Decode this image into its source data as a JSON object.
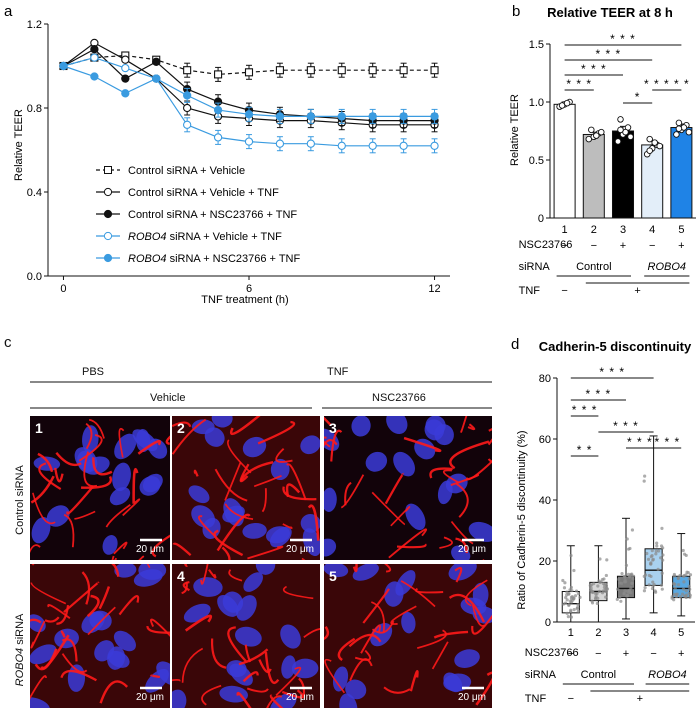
{
  "panel_a": {
    "label": "a",
    "chart_data": {
      "type": "line",
      "xlabel": "TNF treatment (h)",
      "ylabel": "Relative TEER",
      "xlim": [
        -0.5,
        12.5
      ],
      "ylim": [
        0.0,
        1.2
      ],
      "xticks": [
        "0",
        "6",
        "12"
      ],
      "yticks": [
        "0.0",
        "0.4",
        "0.8",
        "1.2"
      ],
      "x": [
        0,
        1,
        2,
        3,
        4,
        5,
        6,
        7,
        8,
        9,
        10,
        11,
        12
      ],
      "series": [
        {
          "name": "Control siRNA + Vehicle",
          "style": "dashed-open-square",
          "color": "#111111",
          "values": [
            1.0,
            1.04,
            1.05,
            1.03,
            0.98,
            0.96,
            0.97,
            0.98,
            0.98,
            0.98,
            0.98,
            0.98,
            0.98
          ]
        },
        {
          "name": "Control siRNA + Vehicle + TNF",
          "style": "open-circle",
          "color": "#111111",
          "values": [
            1.0,
            1.11,
            1.03,
            0.94,
            0.8,
            0.76,
            0.75,
            0.74,
            0.74,
            0.73,
            0.72,
            0.72,
            0.72
          ]
        },
        {
          "name": "Control siRNA + NSC23766 + TNF",
          "style": "filled-circle",
          "color": "#111111",
          "values": [
            1.0,
            1.08,
            0.94,
            1.02,
            0.89,
            0.83,
            0.79,
            0.77,
            0.76,
            0.75,
            0.74,
            0.74,
            0.74
          ]
        },
        {
          "name": "ROBO4 siRNA + Vehicle + TNF",
          "style": "open-circle",
          "color": "#3a9be0",
          "values": [
            1.0,
            1.04,
            0.99,
            0.94,
            0.72,
            0.66,
            0.64,
            0.63,
            0.63,
            0.62,
            0.62,
            0.62,
            0.62
          ]
        },
        {
          "name": "ROBO4 siRNA + NSC23766 + TNF",
          "style": "filled-circle",
          "color": "#3a9be0",
          "values": [
            1.0,
            0.95,
            0.87,
            0.94,
            0.86,
            0.79,
            0.77,
            0.76,
            0.76,
            0.76,
            0.76,
            0.76,
            0.76
          ]
        }
      ],
      "legend": [
        {
          "pre": "",
          "italic": "",
          "text": "Control siRNA + Vehicle"
        },
        {
          "pre": "",
          "italic": "",
          "text": "Control siRNA + Vehicle + TNF"
        },
        {
          "pre": "",
          "italic": "",
          "text": "Control siRNA + NSC23766 + TNF"
        },
        {
          "pre": "",
          "italic": "ROBO4",
          "text": " siRNA + Vehicle + TNF"
        },
        {
          "pre": "",
          "italic": "ROBO4",
          "text": " siRNA + NSC23766 + TNF"
        }
      ]
    }
  },
  "panel_b": {
    "label": "b",
    "chart_data": {
      "type": "bar",
      "title": "Relative TEER at 8 h",
      "ylabel": "Relative TEER",
      "ylim": [
        0,
        1.5
      ],
      "yticks": [
        "0",
        "0.5",
        "1.0",
        "1.5"
      ],
      "categories": [
        "1",
        "2",
        "3",
        "4",
        "5"
      ],
      "values": [
        0.98,
        0.72,
        0.75,
        0.63,
        0.78
      ],
      "errors": [
        0.02,
        0.02,
        0.04,
        0.04,
        0.03
      ],
      "colors": [
        "#ffffff",
        "#bdbdbd",
        "#000000",
        "#e3eef9",
        "#1f83e6"
      ],
      "points": [
        [
          0.96,
          0.98,
          1.0,
          0.97,
          0.99
        ],
        [
          0.68,
          0.7,
          0.73,
          0.76,
          0.71,
          0.74
        ],
        [
          0.66,
          0.72,
          0.78,
          0.85,
          0.74,
          0.7,
          0.76
        ],
        [
          0.55,
          0.6,
          0.63,
          0.68,
          0.65,
          0.62,
          0.58
        ],
        [
          0.72,
          0.76,
          0.8,
          0.82,
          0.78,
          0.74,
          0.77
        ]
      ],
      "significance": [
        {
          "from": 1,
          "to": 5,
          "label": "* * *"
        },
        {
          "from": 1,
          "to": 4,
          "label": "* * *"
        },
        {
          "from": 1,
          "to": 3,
          "label": "* * *"
        },
        {
          "from": 1,
          "to": 2,
          "label": "* * *"
        },
        {
          "from": 3,
          "to": 4,
          "label": "*"
        },
        {
          "from": 4,
          "to": 5,
          "label": "* * * * *"
        }
      ]
    },
    "conditions": {
      "nsc_label": "NSC23766",
      "nsc_signs": [
        "−",
        "−",
        "+",
        "−",
        "+"
      ],
      "sirna_label": "siRNA",
      "sirna_control": "Control",
      "sirna_robo4": "ROBO4",
      "tnf_label": "TNF",
      "tnf_minus": "−",
      "tnf_plus": "+"
    }
  },
  "panel_c": {
    "label": "c",
    "header_pbs": "PBS",
    "header_tnf": "TNF",
    "header_vehicle": "Vehicle",
    "header_nsc": "NSC23766",
    "row1_label": "Control siRNA",
    "row2_label_italic": "ROBO4",
    "row2_label_rest": " siRNA",
    "scale_bar": "20 μm",
    "tiles": [
      "1",
      "2",
      "3",
      "",
      "4",
      "5"
    ]
  },
  "panel_d": {
    "label": "d",
    "chart_data": {
      "type": "box",
      "title": "Cadherin-5 discontinuity",
      "ylabel": "Ratio of Cadherin-5 discontinuity (%)",
      "ylim": [
        0,
        80
      ],
      "yticks": [
        "0",
        "20",
        "40",
        "60",
        "80"
      ],
      "categories": [
        "1",
        "2",
        "3",
        "4",
        "5"
      ],
      "box_colors": [
        "#ffffff",
        "#d6d6d6",
        "#7a7a7a",
        "#a9d1ef",
        "#5aa8e0"
      ],
      "boxes": [
        {
          "min": 0,
          "q1": 3,
          "median": 6,
          "q3": 10,
          "max": 25
        },
        {
          "min": 0,
          "q1": 7,
          "median": 10,
          "q3": 13,
          "max": 25
        },
        {
          "min": 1,
          "q1": 8,
          "median": 11,
          "q3": 15,
          "max": 34
        },
        {
          "min": 3,
          "q1": 12,
          "median": 17,
          "q3": 24,
          "max": 61
        },
        {
          "min": 2,
          "q1": 8,
          "median": 11,
          "q3": 15,
          "max": 29
        }
      ],
      "significance": [
        {
          "from": 1,
          "to": 4,
          "label": "* * *"
        },
        {
          "from": 1,
          "to": 3,
          "label": "* * *"
        },
        {
          "from": 1,
          "to": 2,
          "label": "* * *"
        },
        {
          "from": 2,
          "to": 4,
          "label": "* * *"
        },
        {
          "from": 1,
          "to": 2,
          "label": "* *",
          "low": true
        },
        {
          "from": 3,
          "to": 4,
          "label": "* * *"
        },
        {
          "from": 4,
          "to": 5,
          "label": "* * *"
        }
      ]
    },
    "conditions": {
      "nsc_label": "NSC23766",
      "nsc_signs": [
        "−",
        "−",
        "+",
        "−",
        "+"
      ],
      "sirna_label": "siRNA",
      "sirna_control": "Control",
      "sirna_robo4": "ROBO4",
      "tnf_label": "TNF",
      "tnf_minus": "−",
      "tnf_plus": "+"
    }
  }
}
